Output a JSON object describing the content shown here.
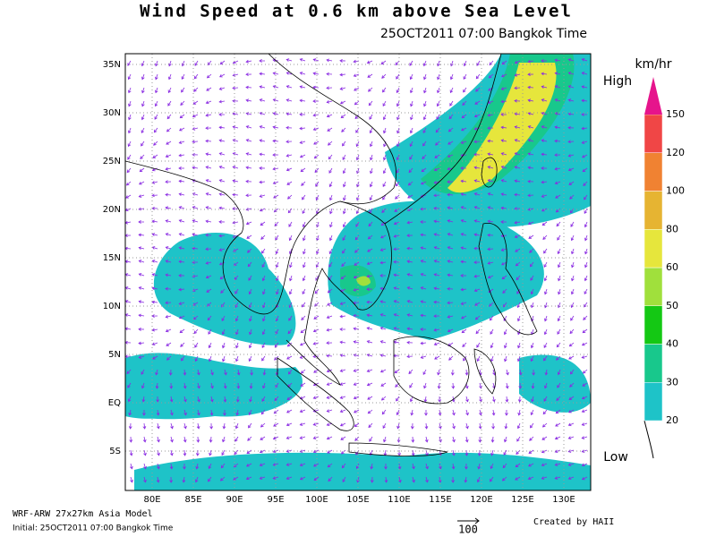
{
  "header": {
    "title": "Wind Speed at 0.6 km above Sea Level",
    "subtitle": "25OCT2011 07:00 Bangkok Time"
  },
  "map": {
    "lat_labels": [
      "35N",
      "30N",
      "25N",
      "20N",
      "15N",
      "10N",
      "5N",
      "EQ",
      "5S"
    ],
    "lon_labels": [
      "80E",
      "85E",
      "90E",
      "95E",
      "100E",
      "105E",
      "110E",
      "115E",
      "120E",
      "125E",
      "130E"
    ]
  },
  "colorbar": {
    "unit": "km/hr",
    "high": "High",
    "low": "Low",
    "levels": [
      20,
      30,
      40,
      50,
      60,
      80,
      100,
      120,
      150
    ],
    "colors": [
      "#1ec3c8",
      "#18c88c",
      "#14c814",
      "#a0e03c",
      "#e6e63c",
      "#e6b432",
      "#f08232",
      "#f04646",
      "#e6148c"
    ]
  },
  "footer": {
    "model": "WRF-ARW 27x27km Asia Model",
    "initial": "Initial: 25OCT2011 07:00 Bangkok Time",
    "reference": "100",
    "credit": "Created by HAII"
  }
}
